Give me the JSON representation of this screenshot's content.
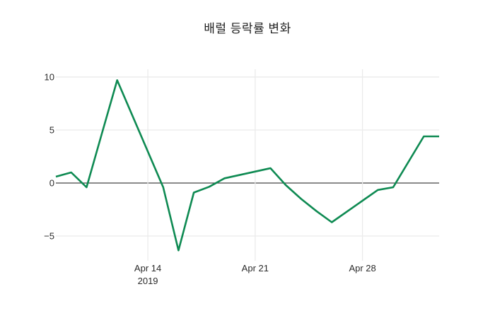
{
  "chart_data": {
    "type": "line",
    "title": "배럴 등락률 변화",
    "xlabel": "",
    "ylabel": "",
    "x": [
      "2019-04-08",
      "2019-04-09",
      "2019-04-10",
      "2019-04-11",
      "2019-04-12",
      "2019-04-15",
      "2019-04-16",
      "2019-04-17",
      "2019-04-18",
      "2019-04-19",
      "2019-04-22",
      "2019-04-23",
      "2019-04-24",
      "2019-04-25",
      "2019-04-26",
      "2019-04-29",
      "2019-04-30",
      "2019-05-02",
      "2019-05-03"
    ],
    "y": [
      0.6,
      1.0,
      -0.4,
      4.65,
      9.7,
      -0.4,
      -6.35,
      -0.9,
      -0.35,
      0.45,
      1.4,
      -0.2,
      -1.5,
      -2.65,
      -3.7,
      -0.65,
      -0.4,
      4.4,
      4.4
    ],
    "xlim": [
      "2019-04-08",
      "2019-05-03"
    ],
    "ylim": [
      -7.33,
      10.73
    ],
    "xticks": [
      {
        "date": "2019-04-14",
        "label": "Apr 14",
        "sublabel": "2019"
      },
      {
        "date": "2019-04-21",
        "label": "Apr 21",
        "sublabel": ""
      },
      {
        "date": "2019-04-28",
        "label": "Apr 28",
        "sublabel": ""
      }
    ],
    "yticks": [
      {
        "value": -5,
        "label": "−5"
      },
      {
        "value": 0,
        "label": "0"
      },
      {
        "value": 5,
        "label": "5"
      },
      {
        "value": 10,
        "label": "10"
      }
    ],
    "grid": true,
    "legend": "none",
    "line_color": "#0e8a52",
    "line_width": 2.6,
    "grid_color": "#ebebeb",
    "zeroline_color": "#444444",
    "tick_color": "#2a2a2a",
    "title_color": "#1f1f1f",
    "background": "#ffffff",
    "tick_font_size": 13
  }
}
